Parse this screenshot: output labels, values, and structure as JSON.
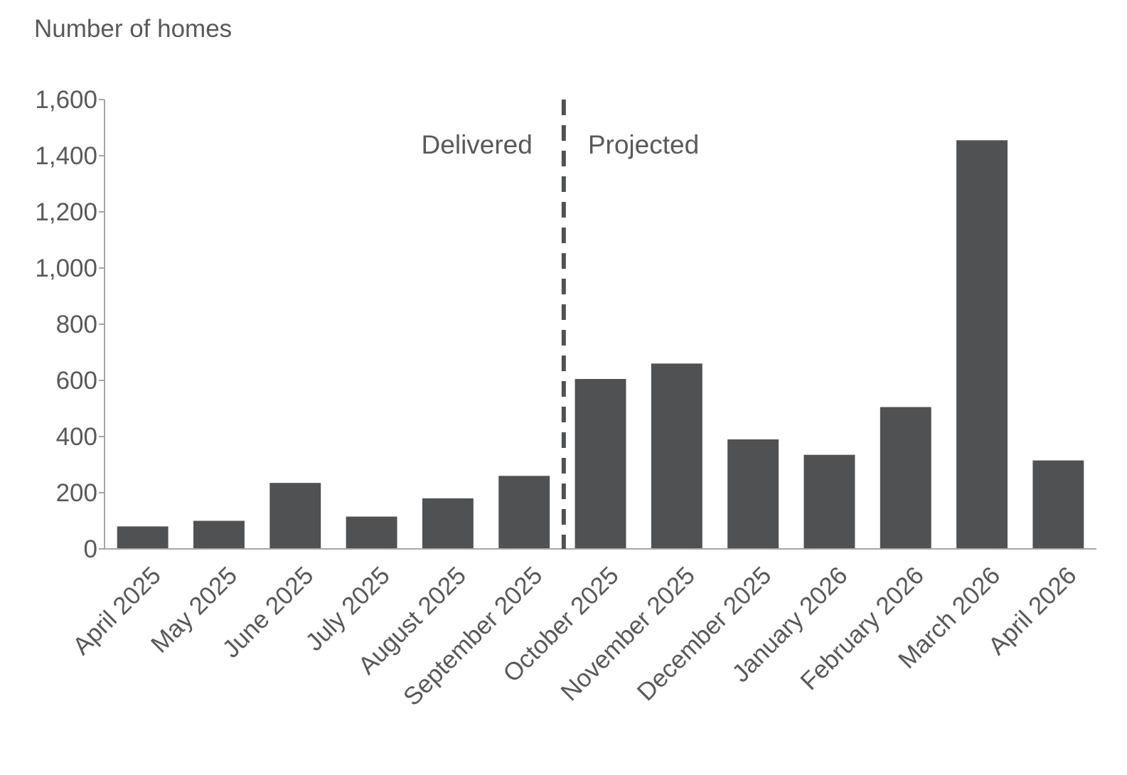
{
  "chart_data": {
    "type": "bar",
    "ylabel": "Number of homes",
    "xlabel": "",
    "categories": [
      "April 2025",
      "May 2025",
      "June 2025",
      "July 2025",
      "August 2025",
      "September 2025",
      "October 2025",
      "November 2025",
      "December 2025",
      "January 2026",
      "February 2026",
      "March 2026",
      "April 2026"
    ],
    "values": [
      80,
      100,
      235,
      115,
      180,
      260,
      605,
      660,
      390,
      335,
      505,
      1455,
      315
    ],
    "ylim": [
      0,
      1600
    ],
    "yticks": [
      0,
      200,
      400,
      600,
      800,
      1000,
      1200,
      1400,
      1600
    ],
    "ytick_labels": [
      "0",
      "200",
      "400",
      "600",
      "800",
      "1,000",
      "1,200",
      "1,400",
      "1,600"
    ],
    "grid": false,
    "annotations": {
      "divider_between": [
        "September 2025",
        "October 2025"
      ],
      "left_label": "Delivered",
      "right_label": "Projected"
    },
    "colors": {
      "bar": "#505153",
      "text": "#595959",
      "axis": "#a6a6a6",
      "divider": "#505153"
    }
  }
}
